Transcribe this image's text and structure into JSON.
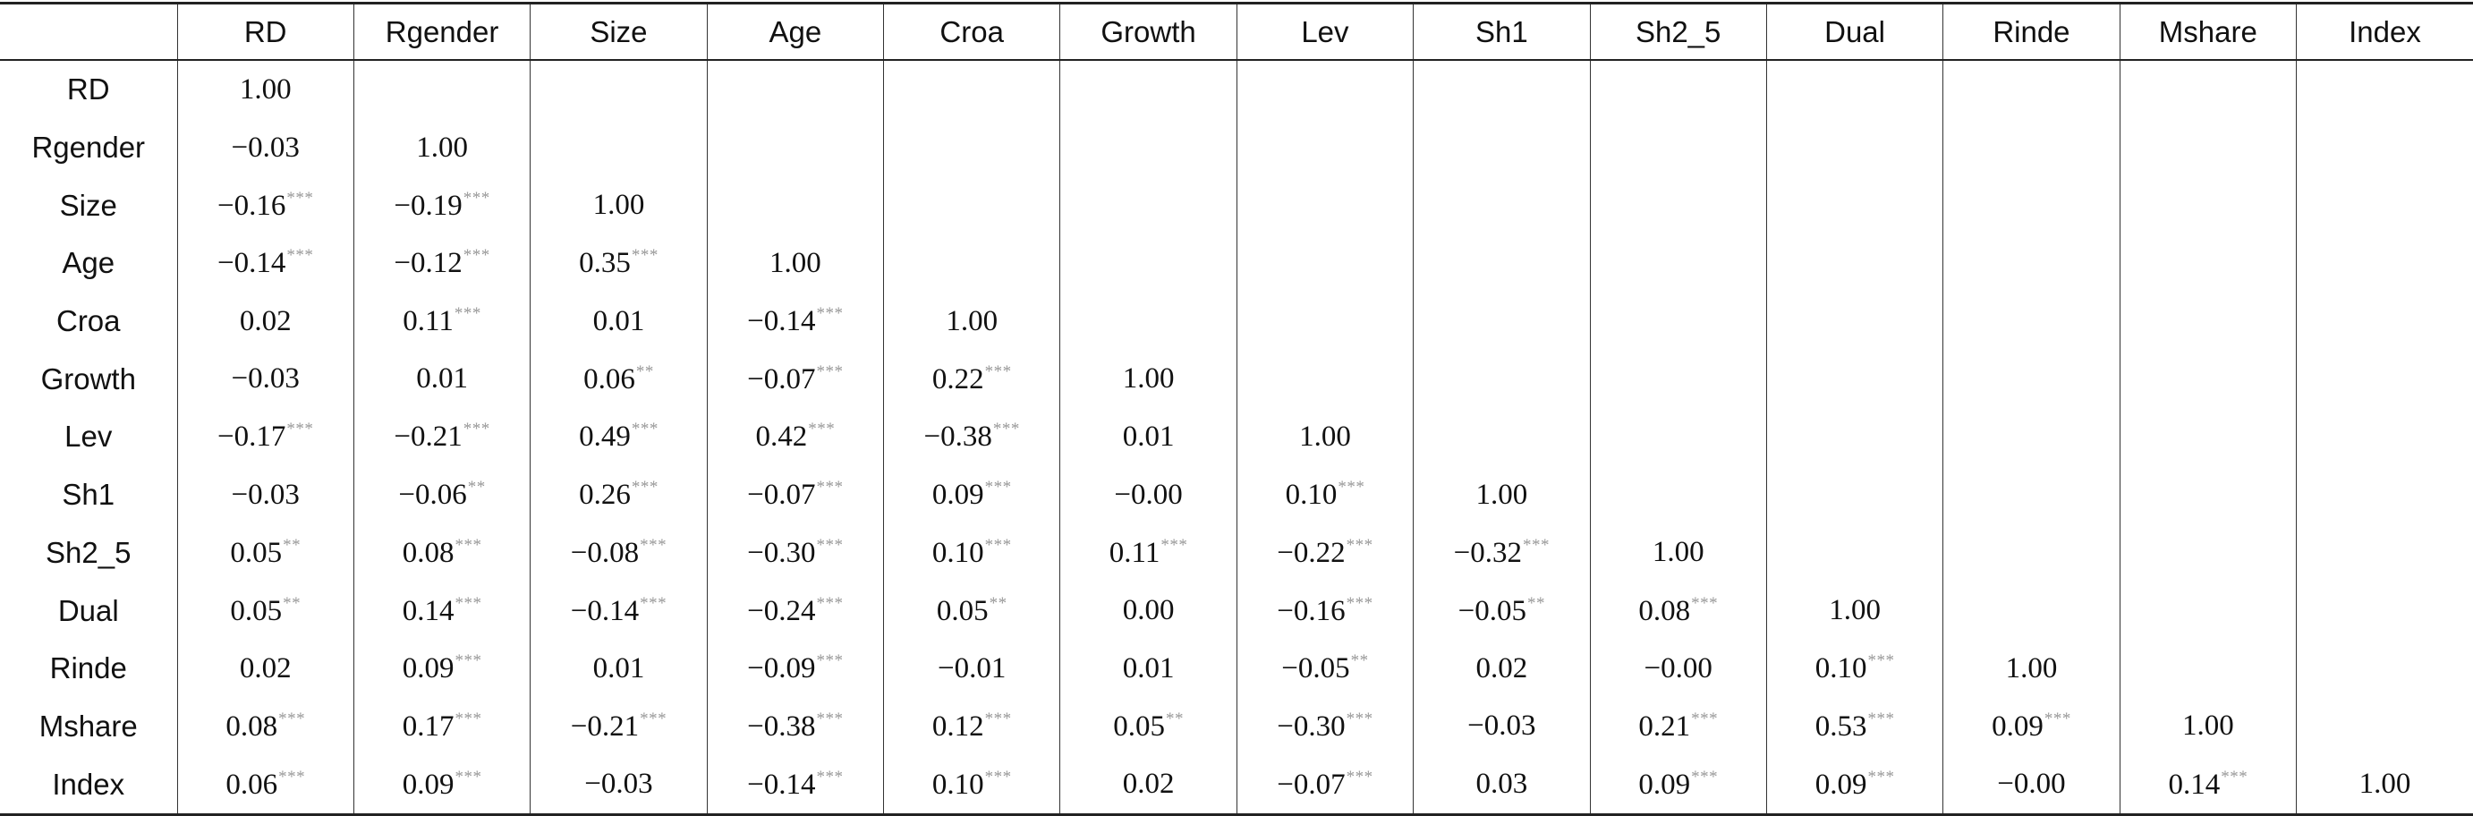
{
  "table": {
    "columns": [
      "",
      "RD",
      "Rgender",
      "Size",
      "Age",
      "Croa",
      "Growth",
      "Lev",
      "Sh1",
      "Sh2_5",
      "Dual",
      "Rinde",
      "Mshare",
      "Index"
    ],
    "rows": [
      {
        "label": "RD",
        "cells": [
          [
            "1.00",
            ""
          ]
        ]
      },
      {
        "label": "Rgender",
        "cells": [
          [
            "−0.03",
            ""
          ],
          [
            "1.00",
            ""
          ]
        ]
      },
      {
        "label": "Size",
        "cells": [
          [
            "−0.16",
            "***"
          ],
          [
            "−0.19",
            "***"
          ],
          [
            "1.00",
            ""
          ]
        ]
      },
      {
        "label": "Age",
        "cells": [
          [
            "−0.14",
            "***"
          ],
          [
            "−0.12",
            "***"
          ],
          [
            "0.35",
            "***"
          ],
          [
            "1.00",
            ""
          ]
        ]
      },
      {
        "label": "Croa",
        "cells": [
          [
            "0.02",
            ""
          ],
          [
            "0.11",
            "***"
          ],
          [
            "0.01",
            ""
          ],
          [
            "−0.14",
            "***"
          ],
          [
            "1.00",
            ""
          ]
        ]
      },
      {
        "label": "Growth",
        "cells": [
          [
            "−0.03",
            ""
          ],
          [
            "0.01",
            ""
          ],
          [
            "0.06",
            "**"
          ],
          [
            "−0.07",
            "***"
          ],
          [
            "0.22",
            "***"
          ],
          [
            "1.00",
            ""
          ]
        ]
      },
      {
        "label": "Lev",
        "cells": [
          [
            "−0.17",
            "***"
          ],
          [
            "−0.21",
            "***"
          ],
          [
            "0.49",
            "***"
          ],
          [
            "0.42",
            "***"
          ],
          [
            "−0.38",
            "***"
          ],
          [
            "0.01",
            ""
          ],
          [
            "1.00",
            ""
          ]
        ]
      },
      {
        "label": "Sh1",
        "cells": [
          [
            "−0.03",
            ""
          ],
          [
            "−0.06",
            "**"
          ],
          [
            "0.26",
            "***"
          ],
          [
            "−0.07",
            "***"
          ],
          [
            "0.09",
            "***"
          ],
          [
            "−0.00",
            ""
          ],
          [
            "0.10",
            "***"
          ],
          [
            "1.00",
            ""
          ]
        ]
      },
      {
        "label": "Sh2_5",
        "cells": [
          [
            "0.05",
            "**"
          ],
          [
            "0.08",
            "***"
          ],
          [
            "−0.08",
            "***"
          ],
          [
            "−0.30",
            "***"
          ],
          [
            "0.10",
            "***"
          ],
          [
            "0.11",
            "***"
          ],
          [
            "−0.22",
            "***"
          ],
          [
            "−0.32",
            "***"
          ],
          [
            "1.00",
            ""
          ]
        ]
      },
      {
        "label": "Dual",
        "cells": [
          [
            "0.05",
            "**"
          ],
          [
            "0.14",
            "***"
          ],
          [
            "−0.14",
            "***"
          ],
          [
            "−0.24",
            "***"
          ],
          [
            "0.05",
            "**"
          ],
          [
            "0.00",
            ""
          ],
          [
            "−0.16",
            "***"
          ],
          [
            "−0.05",
            "**"
          ],
          [
            "0.08",
            "***"
          ],
          [
            "1.00",
            ""
          ]
        ]
      },
      {
        "label": "Rinde",
        "cells": [
          [
            "0.02",
            ""
          ],
          [
            "0.09",
            "***"
          ],
          [
            "0.01",
            ""
          ],
          [
            "−0.09",
            "***"
          ],
          [
            "−0.01",
            ""
          ],
          [
            "0.01",
            ""
          ],
          [
            "−0.05",
            "**"
          ],
          [
            "0.02",
            ""
          ],
          [
            "−0.00",
            ""
          ],
          [
            "0.10",
            "***"
          ],
          [
            "1.00",
            ""
          ]
        ]
      },
      {
        "label": "Mshare",
        "cells": [
          [
            "0.08",
            "***"
          ],
          [
            "0.17",
            "***"
          ],
          [
            "−0.21",
            "***"
          ],
          [
            "−0.38",
            "***"
          ],
          [
            "0.12",
            "***"
          ],
          [
            "0.05",
            "**"
          ],
          [
            "−0.30",
            "***"
          ],
          [
            "−0.03",
            ""
          ],
          [
            "0.21",
            "***"
          ],
          [
            "0.53",
            "***"
          ],
          [
            "0.09",
            "***"
          ],
          [
            "1.00",
            ""
          ]
        ]
      },
      {
        "label": "Index",
        "cells": [
          [
            "0.06",
            "***"
          ],
          [
            "0.09",
            "***"
          ],
          [
            "−0.03",
            ""
          ],
          [
            "−0.14",
            "***"
          ],
          [
            "0.10",
            "***"
          ],
          [
            "0.02",
            ""
          ],
          [
            "−0.07",
            "***"
          ],
          [
            "0.03",
            ""
          ],
          [
            "0.09",
            "***"
          ],
          [
            "0.09",
            "***"
          ],
          [
            "−0.00",
            ""
          ],
          [
            "0.14",
            "***"
          ],
          [
            "1.00",
            ""
          ]
        ]
      }
    ]
  }
}
